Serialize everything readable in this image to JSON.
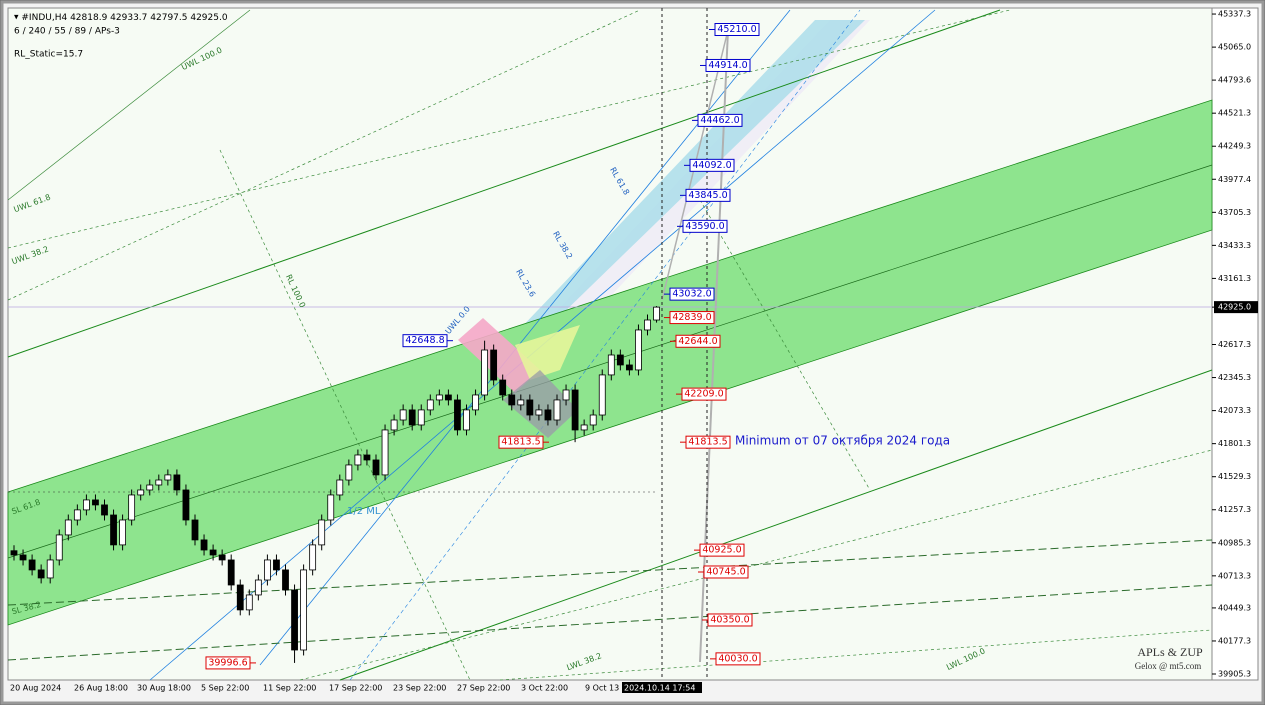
{
  "chart_data": {
    "type": "candlestick",
    "symbol": "#INDU,H4",
    "indicator_line": "6 / 240 / 55 / 89 / APs-3",
    "rl_static": "RL_Static=15.7",
    "open": [
      40920,
      40885,
      40844,
      40762,
      40696,
      40844,
      41050,
      41173,
      41256,
      41338,
      41297,
      41214,
      40968,
      41173,
      41379,
      41420,
      41461,
      41502,
      41544,
      41420,
      41173,
      41009,
      40926,
      40885,
      40844,
      40638,
      40433,
      40556,
      40679,
      40844,
      40762,
      40597,
      40103,
      40762,
      40968,
      41173,
      41379,
      41502,
      41626,
      41708,
      41667,
      41544,
      41914,
      41996,
      42079,
      41955,
      42079,
      42161,
      42202,
      42161,
      41914,
      42079,
      42202,
      42572,
      42325,
      42202,
      42120,
      42161,
      42037,
      42079,
      41996,
      42161,
      42243,
      41914,
      41955,
      42037,
      42367,
      42531,
      42449,
      42408,
      42737,
      42818.9
    ],
    "high": [
      40965,
      40930,
      40889,
      40807,
      40889,
      41095,
      41218,
      41301,
      41383,
      41383,
      41342,
      41259,
      41218,
      41424,
      41465,
      41506,
      41547,
      41589,
      41589,
      41465,
      41218,
      41054,
      40971,
      40930,
      40889,
      40683,
      40601,
      40724,
      40889,
      40889,
      40807,
      40642,
      40807,
      41013,
      41218,
      41424,
      41547,
      41671,
      41753,
      41753,
      41712,
      41959,
      42041,
      42124,
      42124,
      42124,
      42206,
      42247,
      42247,
      42206,
      42124,
      42247,
      42648.8,
      42617,
      42370,
      42247,
      42206,
      42206,
      42124,
      42124,
      42206,
      42288,
      42288,
      42000,
      42082,
      42412,
      42576,
      42576,
      42494,
      42782,
      42864,
      42933.7
    ],
    "low": [
      40840,
      40799,
      40717,
      40651,
      40651,
      40799,
      41005,
      41128,
      41211,
      41252,
      41169,
      40923,
      40923,
      41128,
      41334,
      41375,
      41416,
      41457,
      41375,
      41128,
      40964,
      40881,
      40840,
      40799,
      40593,
      40388,
      40388,
      40511,
      40634,
      40717,
      40552,
      39996.6,
      40058,
      40717,
      40923,
      41128,
      41334,
      41457,
      41581,
      41622,
      41499,
      41499,
      41869,
      41951,
      41910,
      41910,
      42034,
      42116,
      42116,
      41869,
      41869,
      42034,
      42157,
      42280,
      42157,
      42075,
      42075,
      41992,
      41992,
      41951,
      41951,
      42116,
      41813.5,
      41869,
      41910,
      41992,
      42322,
      42404,
      42363,
      42363,
      42692,
      42797.5
    ],
    "close": [
      40885,
      40844,
      40762,
      40696,
      40844,
      41050,
      41173,
      41256,
      41338,
      41297,
      41214,
      40968,
      41173,
      41379,
      41420,
      41461,
      41502,
      41544,
      41420,
      41173,
      41009,
      40926,
      40885,
      40844,
      40638,
      40433,
      40556,
      40679,
      40844,
      40762,
      40597,
      40103,
      40762,
      40968,
      41173,
      41379,
      41502,
      41626,
      41708,
      41667,
      41544,
      41914,
      41996,
      42079,
      41955,
      42079,
      42161,
      42202,
      42161,
      41914,
      42079,
      42202,
      42572,
      42325,
      42202,
      42120,
      42161,
      42037,
      42079,
      41996,
      42161,
      42243,
      41914,
      41955,
      42037,
      42367,
      42531,
      42449,
      42408,
      42737,
      42818.9,
      42925
    ],
    "ylim": [
      39856,
      45387
    ],
    "yticks": [
      45337.3,
      {
        "value": 45065,
        "label": "45065.0"
      },
      44793.6,
      44521.3,
      44249.3,
      43977.4,
      43705.3,
      43433.3,
      43161.3,
      {
        "value": 42925,
        "label": "42925.0"
      },
      42617.3,
      42345.3,
      42073.3,
      41801.3,
      41529.3,
      41257.3,
      40985.3,
      40713.3,
      40449.3,
      40177.3,
      39905.3
    ],
    "x_labels": [
      "20 Aug 2024",
      "26 Aug 18:00",
      "30 Aug 18:00",
      "5 Sep 22:00",
      "11 Sep 22:00",
      "17 Sep 22:00",
      "23 Sep 22:00",
      "27 Sep 22:00",
      "3 Oct 22:00",
      "9 Oct 13",
      "2024.10.14 17:54"
    ],
    "levels": [
      {
        "value": 45210,
        "label": "45210.0",
        "color": "#0000cc"
      },
      {
        "value": 44914,
        "label": "44914.0",
        "color": "#0000cc"
      },
      {
        "value": 44462,
        "label": "44462.0",
        "color": "#0000cc"
      },
      {
        "value": 44092,
        "label": "44092.0",
        "color": "#0000cc"
      },
      {
        "value": 43845,
        "label": "43845.0",
        "color": "#0000cc"
      },
      {
        "value": 43590,
        "label": "43590.0",
        "color": "#0000cc"
      },
      {
        "value": 43032,
        "label": "43032.0",
        "color": "#0000cc"
      },
      {
        "value": 42839,
        "label": "42839.0",
        "color": "#dd0000"
      },
      {
        "value": 42644,
        "label": "42644.0",
        "color": "#dd0000"
      },
      {
        "value": 42209,
        "label": "42209.0",
        "color": "#dd0000"
      },
      {
        "value": 41813.5,
        "label": "41813.5",
        "color": "#dd0000"
      },
      {
        "value": 40925,
        "label": "40925.0",
        "color": "#dd0000"
      },
      {
        "value": 40745,
        "label": "40745.0",
        "color": "#dd0000"
      },
      {
        "value": 40350,
        "label": "40350.0",
        "color": "#dd0000"
      },
      {
        "value": 40030,
        "label": "40030.0",
        "color": "#dd0000"
      },
      {
        "value": 42648.8,
        "label": "42648.8",
        "color": "#0000cc"
      },
      {
        "value": 41813.5,
        "label": "41813.5",
        "color": "#dd0000"
      },
      {
        "value": 39996.6,
        "label": "39996.6",
        "color": "#dd0000"
      }
    ],
    "annotation": "Minimum от 07 октября 2024 года",
    "line_labels": [
      "UWL 100.0",
      "UWL 61.8",
      "UWL 38.2",
      "RL 100.0",
      "RL 61.8",
      "RL 38.2",
      "RL 23.6",
      "UWL 0.0",
      "SL 61.8",
      "SL 38.2",
      "LWL 38.2",
      "LWL 100.0",
      "1/2 ML"
    ],
    "watermark": [
      "APLs & ZUP",
      "Gelox @ mt5.com"
    ]
  }
}
